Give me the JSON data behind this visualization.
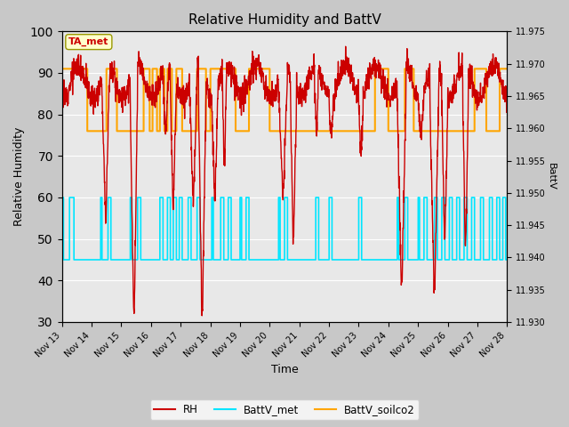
{
  "title": "Relative Humidity and BattV",
  "ylabel_left": "Relative Humidity",
  "ylabel_right": "BattV",
  "xlabel": "Time",
  "ylim_left": [
    30,
    100
  ],
  "ylim_right": [
    11.93,
    11.975
  ],
  "fig_bg_color": "#c8c8c8",
  "plot_bg_color": "#e8e8e8",
  "rh_color": "#cc0000",
  "battv_met_color": "#00e5ff",
  "battv_soilco2_color": "#ffa500",
  "annotation_text": "TA_met",
  "annotation_color": "#cc0000",
  "annotation_bg": "#ffffcc",
  "annotation_edge": "#999900",
  "x_tick_labels": [
    "Nov 13",
    "Nov 14",
    "Nov 15",
    "Nov 16",
    "Nov 17",
    "Nov 18",
    "Nov 19",
    "Nov 20",
    "Nov 21",
    "Nov 22",
    "Nov 23",
    "Nov 24",
    "Nov 25",
    "Nov 26",
    "Nov 27",
    "Nov 28"
  ],
  "legend_labels": [
    "RH",
    "BattV_met",
    "BattV_soilco2"
  ],
  "grid_color": "#ffffff",
  "rh_linewidth": 1.0,
  "battv_met_linewidth": 1.2,
  "battv_soilco2_linewidth": 1.5
}
